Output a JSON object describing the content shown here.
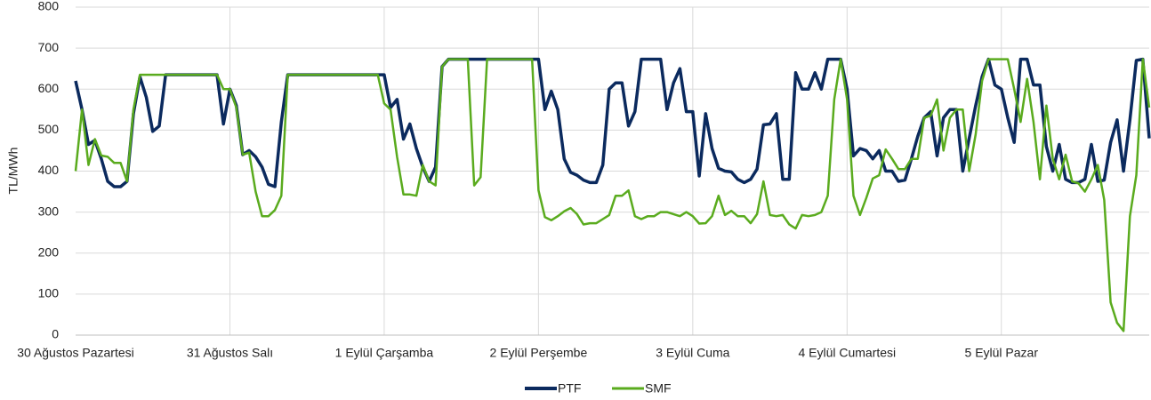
{
  "chart_data": {
    "type": "line",
    "y_label": "TL/MWh",
    "categories": [
      "30 Ağustos Pazartesi",
      null,
      null,
      null,
      null,
      null,
      null,
      null,
      null,
      null,
      null,
      null,
      null,
      null,
      null,
      null,
      null,
      null,
      null,
      null,
      null,
      null,
      null,
      null,
      "31 Ağustos Salı",
      null,
      null,
      null,
      null,
      null,
      null,
      null,
      null,
      null,
      null,
      null,
      null,
      null,
      null,
      null,
      null,
      null,
      null,
      null,
      null,
      null,
      null,
      null,
      "1 Eylül Çarşamba",
      null,
      null,
      null,
      null,
      null,
      null,
      null,
      null,
      null,
      null,
      null,
      null,
      null,
      null,
      null,
      null,
      null,
      null,
      null,
      null,
      null,
      null,
      null,
      "2 Eylül Perşembe",
      null,
      null,
      null,
      null,
      null,
      null,
      null,
      null,
      null,
      null,
      null,
      null,
      null,
      null,
      null,
      null,
      null,
      null,
      null,
      null,
      null,
      null,
      null,
      "3 Eylül Cuma",
      null,
      null,
      null,
      null,
      null,
      null,
      null,
      null,
      null,
      null,
      null,
      null,
      null,
      null,
      null,
      null,
      null,
      null,
      null,
      null,
      null,
      null,
      null,
      "4 Eylül Cumartesi",
      null,
      null,
      null,
      null,
      null,
      null,
      null,
      null,
      null,
      null,
      null,
      null,
      null,
      null,
      null,
      null,
      null,
      null,
      null,
      null,
      null,
      null,
      null,
      "5 Eylül Pazar",
      null,
      null,
      null,
      null,
      null,
      null,
      null,
      null,
      null,
      null,
      null,
      null,
      null,
      null,
      null,
      null,
      null,
      null,
      null,
      null,
      null,
      null,
      null
    ],
    "series": [
      {
        "name": "PTF",
        "color": "#0b2a5e",
        "values": [
          620,
          550,
          465,
          475,
          430,
          375,
          362,
          362,
          375,
          540,
          630,
          580,
          497,
          510,
          635,
          635,
          635,
          635,
          635,
          635,
          635,
          635,
          635,
          515,
          600,
          560,
          440,
          450,
          435,
          410,
          368,
          362,
          520,
          635,
          635,
          635,
          635,
          635,
          635,
          635,
          635,
          635,
          635,
          635,
          635,
          635,
          635,
          635,
          635,
          555,
          575,
          478,
          515,
          455,
          410,
          375,
          410,
          655,
          673,
          673,
          673,
          673,
          673,
          673,
          673,
          673,
          673,
          673,
          673,
          673,
          673,
          673,
          673,
          550,
          595,
          550,
          430,
          397,
          390,
          378,
          372,
          372,
          415,
          600,
          615,
          615,
          510,
          545,
          673,
          673,
          673,
          673,
          550,
          615,
          650,
          545,
          545,
          388,
          540,
          455,
          407,
          400,
          398,
          380,
          372,
          380,
          405,
          513,
          515,
          540,
          380,
          380,
          640,
          600,
          600,
          640,
          600,
          673,
          673,
          673,
          600,
          437,
          455,
          450,
          430,
          450,
          400,
          400,
          375,
          378,
          430,
          485,
          530,
          545,
          437,
          530,
          550,
          550,
          400,
          480,
          560,
          630,
          673,
          610,
          600,
          530,
          470,
          673,
          673,
          610,
          610,
          460,
          400,
          465,
          380,
          372,
          372,
          380,
          465,
          375,
          378,
          470,
          525,
          400,
          525,
          670,
          673,
          480
        ]
      },
      {
        "name": "SMF",
        "color": "#5aab1e",
        "values": [
          400,
          550,
          415,
          478,
          438,
          435,
          420,
          420,
          375,
          550,
          635,
          635,
          635,
          635,
          635,
          635,
          635,
          635,
          635,
          635,
          635,
          635,
          635,
          600,
          600,
          555,
          440,
          445,
          350,
          290,
          290,
          305,
          340,
          635,
          635,
          635,
          635,
          635,
          635,
          635,
          635,
          635,
          635,
          635,
          635,
          635,
          635,
          635,
          565,
          550,
          435,
          343,
          343,
          340,
          415,
          375,
          365,
          655,
          673,
          673,
          673,
          673,
          365,
          385,
          673,
          673,
          673,
          673,
          673,
          673,
          673,
          673,
          353,
          288,
          280,
          290,
          302,
          310,
          295,
          270,
          273,
          273,
          283,
          293,
          340,
          340,
          353,
          290,
          283,
          290,
          290,
          300,
          300,
          295,
          290,
          300,
          290,
          272,
          273,
          290,
          340,
          293,
          303,
          290,
          290,
          273,
          295,
          375,
          293,
          290,
          293,
          270,
          260,
          293,
          290,
          293,
          300,
          340,
          575,
          673,
          575,
          340,
          293,
          335,
          382,
          390,
          453,
          430,
          405,
          405,
          430,
          430,
          530,
          535,
          575,
          450,
          530,
          550,
          550,
          400,
          490,
          620,
          673,
          673,
          673,
          673,
          600,
          520,
          625,
          520,
          380,
          560,
          430,
          380,
          440,
          375,
          370,
          350,
          380,
          415,
          330,
          80,
          30,
          10,
          290,
          390,
          673,
          555
        ]
      }
    ],
    "ylim": [
      0,
      800
    ],
    "yticks": [
      0,
      100,
      200,
      300,
      400,
      500,
      600,
      700,
      800
    ],
    "grid": true
  }
}
